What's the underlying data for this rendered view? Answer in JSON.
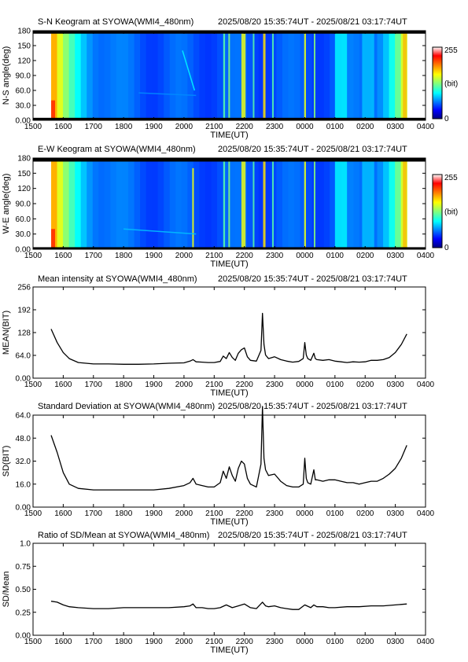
{
  "instrument": "SYOWA(WMI4_480nm)",
  "time_range": "2025/08/20 15:35:74UT - 2025/08/21 03:17:74UT",
  "colorbar": {
    "min_label": "0",
    "max_label": "255",
    "unit_label": "(bit)"
  },
  "colors": {
    "line": "#000000",
    "mask": "#000000",
    "background": "#ffffff"
  },
  "chart_data": [
    {
      "type": "heatmap",
      "title": "S-N Keogram at SYOWA(WMI4_480nm)",
      "xlabel": "TIME(UT)",
      "ylabel": "N-S angle(deg)",
      "xlim": [
        1500,
        2800
      ],
      "ylim": [
        0,
        180
      ],
      "xtick_labels": [
        "1500",
        "1600",
        "1700",
        "1800",
        "1900",
        "2000",
        "2100",
        "2200",
        "2300",
        "0000",
        "0100",
        "0200",
        "0300",
        "0400"
      ],
      "ytick_labels": [
        "0.00",
        "30.0",
        "60.0",
        "90.0",
        "120",
        "150",
        "180"
      ],
      "data_start": 1560,
      "data_end": 2738,
      "masked_deg": [
        [
          0,
          5
        ],
        [
          174,
          180
        ]
      ],
      "bright_bands": [
        {
          "x": 2130,
          "w": 6,
          "level": 0.45
        },
        {
          "x": 2147,
          "w": 5,
          "level": 0.5
        },
        {
          "x": 2190,
          "w": 14,
          "level": 0.6
        },
        {
          "x": 2228,
          "w": 5,
          "level": 0.45
        },
        {
          "x": 2262,
          "w": 8,
          "level": 0.65
        },
        {
          "x": 2292,
          "w": 5,
          "level": 0.45
        },
        {
          "x": 2398,
          "w": 6,
          "level": 0.6
        },
        {
          "x": 2430,
          "w": 5,
          "level": 0.5
        },
        {
          "x": 2500,
          "w": 40,
          "level": 0.35
        },
        {
          "x": 2590,
          "w": 40,
          "level": 0.3
        }
      ],
      "features": [
        {
          "kind": "arc",
          "from": [
            1995,
            140
          ],
          "to": [
            2035,
            60
          ],
          "level": 0.35
        },
        {
          "kind": "arc",
          "from": [
            1850,
            55
          ],
          "to": [
            2040,
            50
          ],
          "level": 0.25
        }
      ]
    },
    {
      "type": "heatmap",
      "title": "E-W Keogram at SYOWA(WMI4_480nm)",
      "xlabel": "TIME(UT)",
      "ylabel": "W-E angle(deg)",
      "xlim": [
        1500,
        2800
      ],
      "ylim": [
        0,
        180
      ],
      "xtick_labels": [
        "1500",
        "1600",
        "1700",
        "1800",
        "1900",
        "2000",
        "2100",
        "2200",
        "2300",
        "0000",
        "0100",
        "0200",
        "0300",
        "0400"
      ],
      "ytick_labels": [
        "0.00",
        "30.0",
        "60.0",
        "90.0",
        "120",
        "150",
        "180"
      ],
      "data_start": 1560,
      "data_end": 2738,
      "masked_deg": [
        [
          0,
          4
        ],
        [
          173,
          180
        ]
      ],
      "bright_bands": [
        {
          "x": 2130,
          "w": 6,
          "level": 0.45
        },
        {
          "x": 2147,
          "w": 5,
          "level": 0.5
        },
        {
          "x": 2190,
          "w": 14,
          "level": 0.6
        },
        {
          "x": 2228,
          "w": 5,
          "level": 0.45
        },
        {
          "x": 2262,
          "w": 8,
          "level": 0.65
        },
        {
          "x": 2292,
          "w": 5,
          "level": 0.45
        },
        {
          "x": 2398,
          "w": 6,
          "level": 0.6
        },
        {
          "x": 2430,
          "w": 5,
          "level": 0.5
        },
        {
          "x": 2500,
          "w": 40,
          "level": 0.35
        },
        {
          "x": 2590,
          "w": 40,
          "level": 0.3
        }
      ],
      "features": [
        {
          "kind": "line",
          "from": [
            2030,
            0
          ],
          "to": [
            2030,
            160
          ],
          "level": 0.6
        },
        {
          "kind": "arc",
          "from": [
            1800,
            40
          ],
          "to": [
            2040,
            30
          ],
          "level": 0.3
        }
      ]
    },
    {
      "type": "line",
      "title": "Mean intensity at SYOWA(WMI4_480nm)",
      "xlabel": "TIME(UT)",
      "ylabel": "MEAN(BIT)",
      "xlim": [
        1500,
        2800
      ],
      "ylim": [
        0,
        256
      ],
      "xtick_labels": [
        "1500",
        "1600",
        "1700",
        "1800",
        "1900",
        "2000",
        "2100",
        "2200",
        "2300",
        "0000",
        "0100",
        "0200",
        "0300",
        "0400"
      ],
      "ytick_values": [
        0,
        64,
        128,
        192,
        256
      ],
      "ytick_labels": [
        "0.00",
        "64.0",
        "128",
        "192",
        "256"
      ],
      "series": [
        {
          "x": [
            1560,
            1580,
            1600,
            1620,
            1650,
            1700,
            1750,
            1800,
            1850,
            1900,
            1950,
            2000,
            2020,
            2030,
            2040,
            2060,
            2080,
            2100,
            2120,
            2130,
            2140,
            2150,
            2160,
            2170,
            2180,
            2190,
            2200,
            2210,
            2220,
            2240,
            2255,
            2260,
            2265,
            2270,
            2280,
            2300,
            2320,
            2340,
            2360,
            2380,
            2395,
            2400,
            2405,
            2410,
            2420,
            2430,
            2435,
            2440,
            2460,
            2480,
            2500,
            2520,
            2540,
            2560,
            2580,
            2600,
            2620,
            2640,
            2660,
            2680,
            2700,
            2720,
            2738
          ],
          "y": [
            138,
            100,
            72,
            55,
            44,
            40,
            40,
            39,
            39,
            40,
            42,
            43,
            48,
            52,
            46,
            45,
            44,
            44,
            47,
            62,
            55,
            72,
            58,
            50,
            70,
            80,
            85,
            60,
            50,
            48,
            78,
            182,
            95,
            65,
            55,
            60,
            52,
            48,
            45,
            47,
            55,
            100,
            65,
            55,
            50,
            70,
            55,
            52,
            50,
            52,
            48,
            46,
            44,
            46,
            45,
            46,
            50,
            50,
            52,
            58,
            72,
            95,
            124
          ]
        }
      ]
    },
    {
      "type": "line",
      "title": "Standard Deviation at SYOWA(WMI4_480nm)",
      "xlabel": "TIME(UT)",
      "ylabel": "SD(BIT)",
      "xlim": [
        1500,
        2800
      ],
      "ylim": [
        0,
        64
      ],
      "xtick_labels": [
        "1500",
        "1600",
        "1700",
        "1800",
        "1900",
        "2000",
        "2100",
        "2200",
        "2300",
        "0000",
        "0100",
        "0200",
        "0300",
        "0400"
      ],
      "ytick_values": [
        0,
        16,
        32,
        48,
        64
      ],
      "ytick_labels": [
        "0.00",
        "16.0",
        "32.0",
        "48.0",
        "64.0"
      ],
      "series": [
        {
          "x": [
            1560,
            1580,
            1600,
            1620,
            1650,
            1700,
            1750,
            1800,
            1850,
            1900,
            1950,
            2000,
            2020,
            2030,
            2040,
            2060,
            2080,
            2100,
            2120,
            2130,
            2140,
            2150,
            2160,
            2170,
            2180,
            2190,
            2200,
            2210,
            2220,
            2240,
            2255,
            2260,
            2265,
            2270,
            2280,
            2300,
            2320,
            2340,
            2360,
            2380,
            2395,
            2400,
            2405,
            2410,
            2420,
            2430,
            2435,
            2440,
            2460,
            2480,
            2500,
            2520,
            2540,
            2560,
            2580,
            2600,
            2620,
            2640,
            2660,
            2680,
            2700,
            2720,
            2738
          ],
          "y": [
            50,
            38,
            24,
            16,
            13,
            12,
            12,
            12,
            12,
            12,
            13,
            15,
            17,
            20,
            16,
            15,
            14,
            14,
            17,
            25,
            20,
            28,
            22,
            18,
            27,
            32,
            30,
            20,
            16,
            14,
            30,
            70,
            34,
            26,
            22,
            23,
            18,
            15,
            14,
            14,
            16,
            34,
            20,
            17,
            16,
            26,
            19,
            19,
            18,
            19,
            19,
            18,
            17,
            17,
            16,
            17,
            18,
            18,
            20,
            23,
            27,
            34,
            43
          ]
        }
      ]
    },
    {
      "type": "line",
      "title": "Ratio of SD/Mean at SYOWA(WMI4_480nm)",
      "xlabel": "TIME(UT)",
      "ylabel": "SD/Mean",
      "xlim": [
        1500,
        2800
      ],
      "ylim": [
        0,
        1
      ],
      "xtick_labels": [
        "1500",
        "1600",
        "1700",
        "1800",
        "1900",
        "2000",
        "2100",
        "2200",
        "2300",
        "0000",
        "0100",
        "0200",
        "0300",
        "0400"
      ],
      "ytick_values": [
        0,
        0.25,
        0.5,
        0.75,
        1
      ],
      "ytick_labels": [
        "0.00",
        "0.25",
        "0.50",
        "0.75",
        "1.0"
      ],
      "series": [
        {
          "x": [
            1560,
            1580,
            1600,
            1620,
            1650,
            1700,
            1750,
            1800,
            1850,
            1900,
            1950,
            2000,
            2020,
            2030,
            2040,
            2060,
            2080,
            2100,
            2120,
            2140,
            2160,
            2180,
            2200,
            2220,
            2240,
            2260,
            2270,
            2280,
            2300,
            2320,
            2340,
            2360,
            2380,
            2400,
            2420,
            2430,
            2440,
            2460,
            2480,
            2500,
            2540,
            2580,
            2620,
            2660,
            2700,
            2738
          ],
          "y": [
            0.37,
            0.36,
            0.33,
            0.31,
            0.3,
            0.29,
            0.29,
            0.3,
            0.3,
            0.3,
            0.3,
            0.31,
            0.32,
            0.34,
            0.3,
            0.3,
            0.29,
            0.29,
            0.3,
            0.33,
            0.3,
            0.32,
            0.34,
            0.3,
            0.29,
            0.36,
            0.32,
            0.31,
            0.32,
            0.3,
            0.29,
            0.28,
            0.28,
            0.33,
            0.3,
            0.33,
            0.31,
            0.31,
            0.3,
            0.3,
            0.31,
            0.31,
            0.32,
            0.32,
            0.33,
            0.34
          ]
        }
      ]
    }
  ]
}
